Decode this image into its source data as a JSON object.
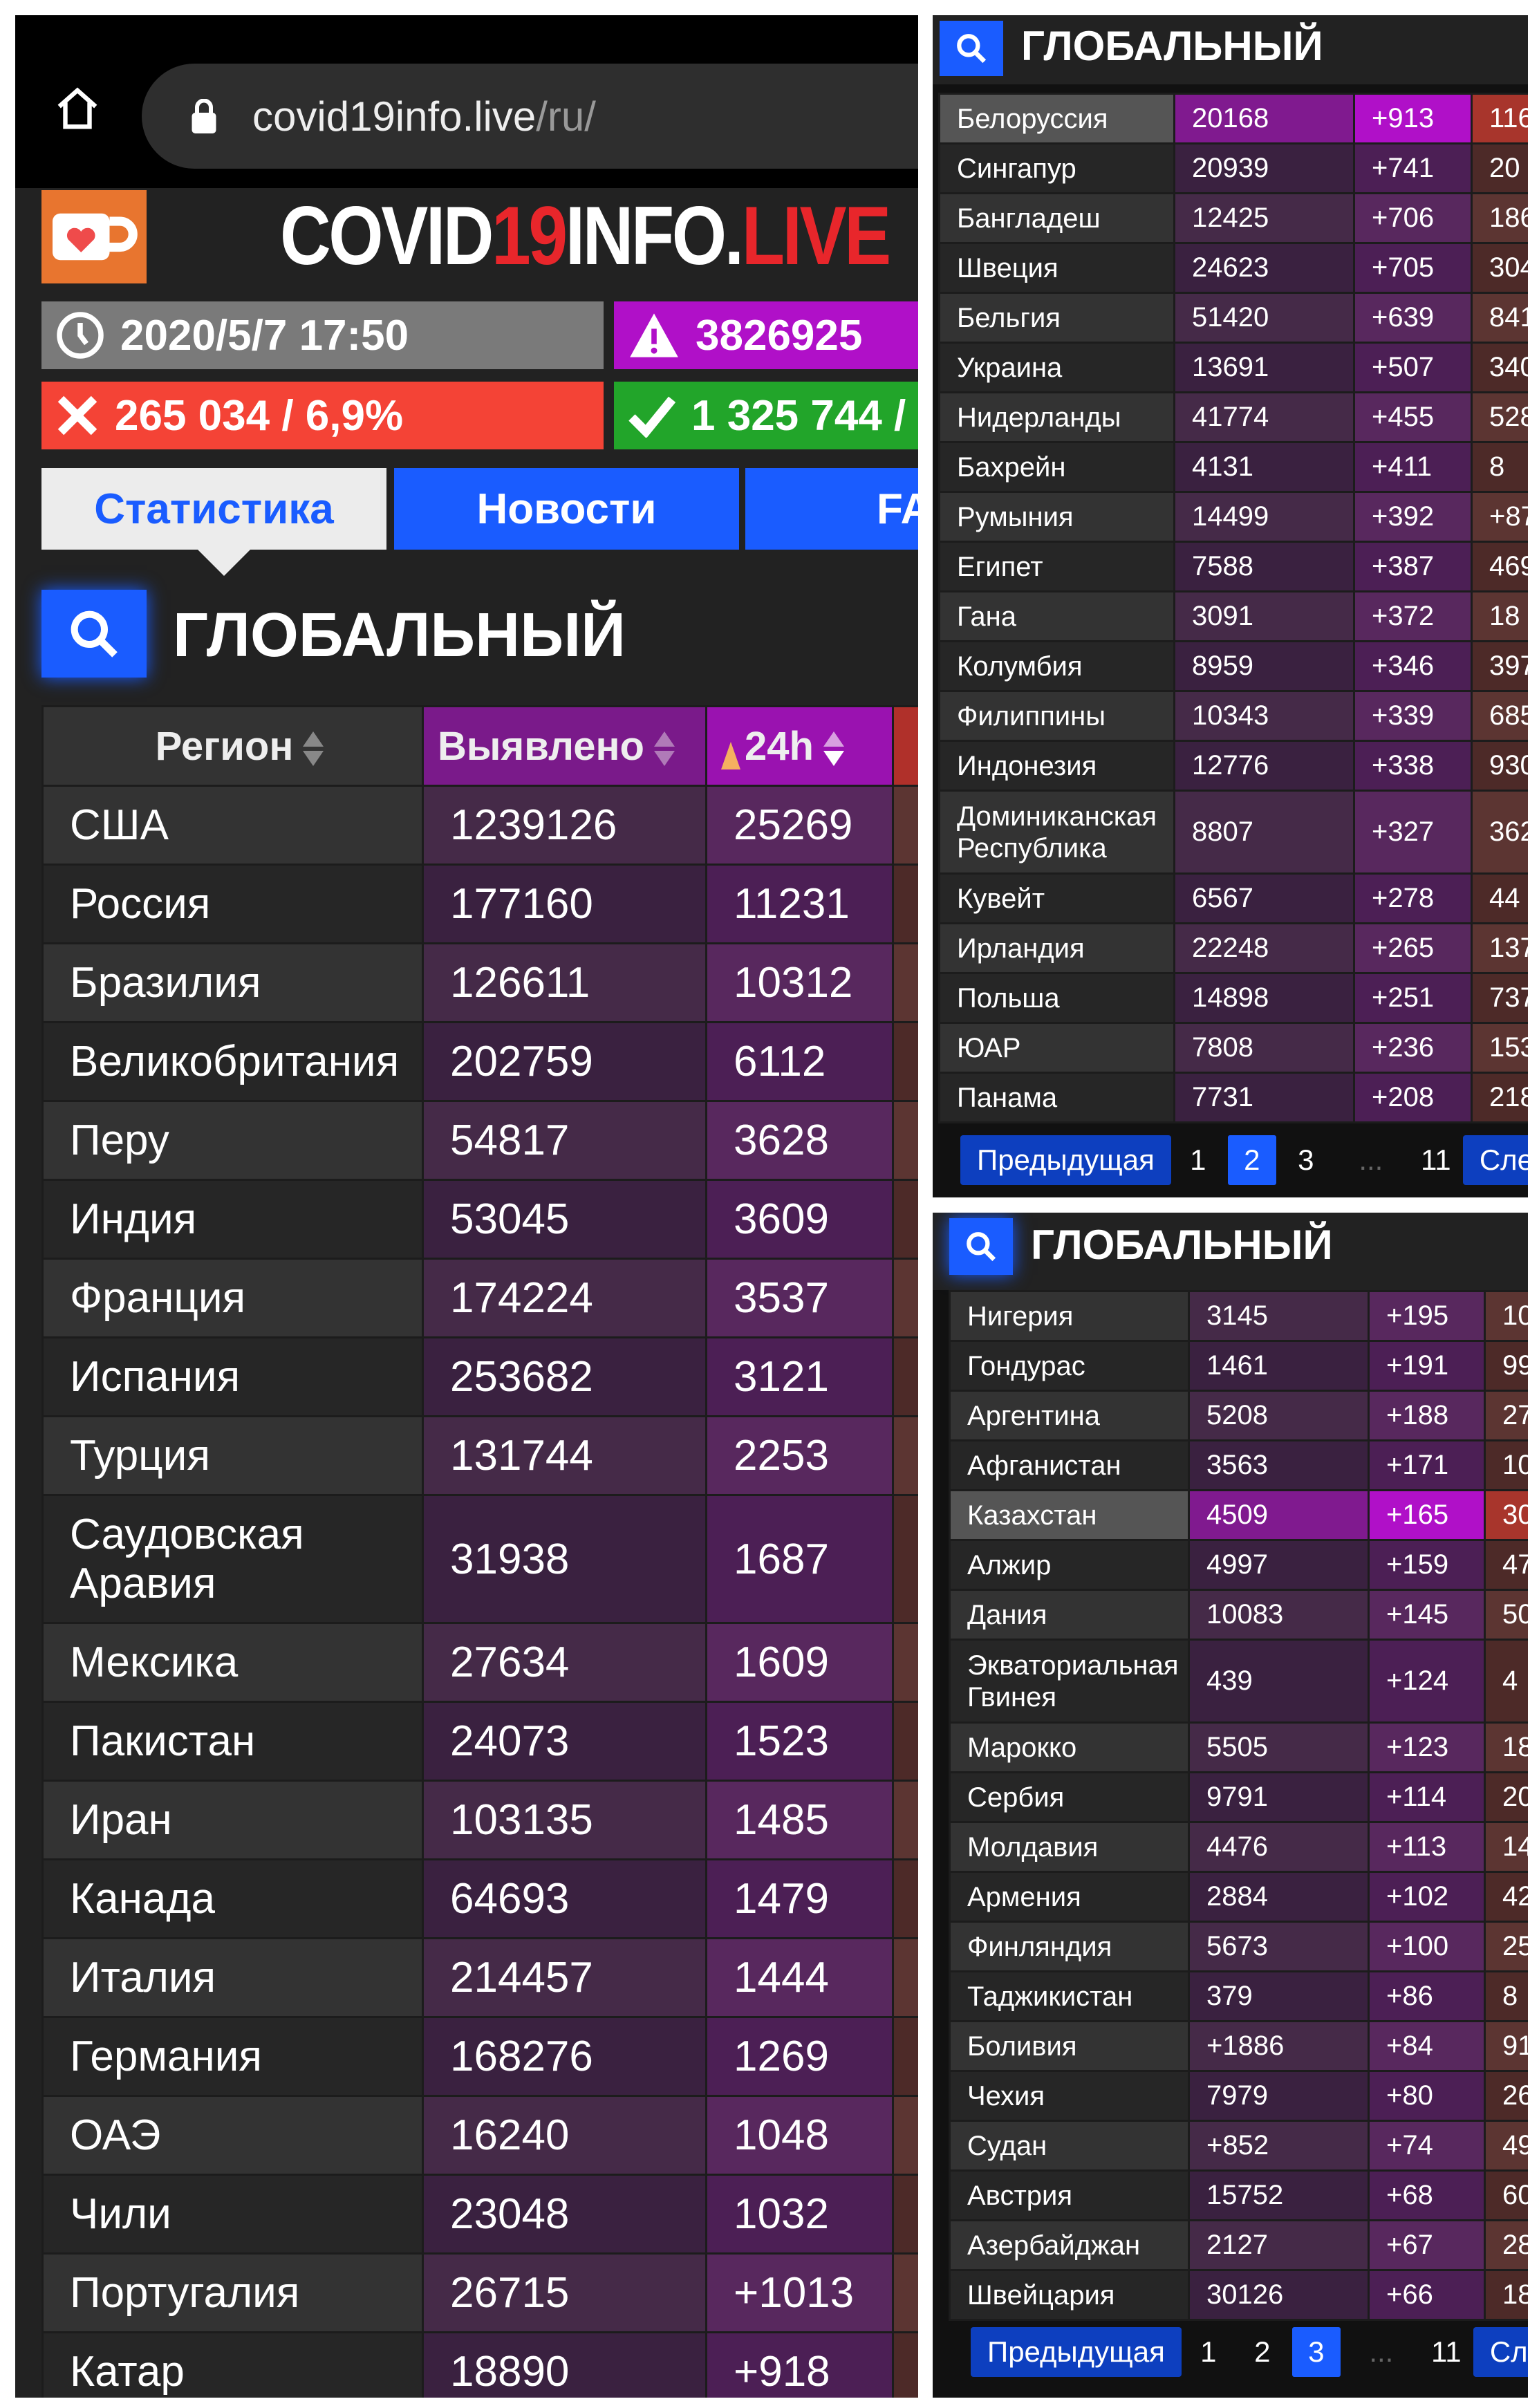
{
  "browser": {
    "host": "covid19info.live",
    "path": "/ru/"
  },
  "site": {
    "title_a": "COVID",
    "title_b": "19",
    "title_c": "INFO.",
    "title_d": "LIVE",
    "colors": {
      "accent": "#1a5cff",
      "cases": "#b010c8",
      "deaths": "#f44336",
      "recovered": "#22a52a"
    }
  },
  "stats": {
    "updated": "2020/5/7 17:50",
    "cases": "3826925",
    "deaths": "265 034  / 6,9%",
    "recovered": "1 325 744  /"
  },
  "tabs": [
    "Статистика",
    "Новости",
    "FA"
  ],
  "heading": "ГЛОБАЛЬНЫЙ",
  "table_headers": {
    "region": "Регион",
    "detected": "Выявлено",
    "day": "24h"
  },
  "left_rows": [
    [
      "США",
      "1239126",
      "25269"
    ],
    [
      "Россия",
      "177160",
      "11231"
    ],
    [
      "Бразилия",
      "126611",
      "10312"
    ],
    [
      "Великобритания",
      "202759",
      "6112"
    ],
    [
      "Перу",
      "54817",
      "3628"
    ],
    [
      "Индия",
      "53045",
      "3609"
    ],
    [
      "Франция",
      "174224",
      "3537"
    ],
    [
      "Испания",
      "253682",
      "3121"
    ],
    [
      "Турция",
      "131744",
      "2253"
    ],
    [
      "Саудовская Аравия",
      "31938",
      "1687"
    ],
    [
      "Мексика",
      "27634",
      "1609"
    ],
    [
      "Пакистан",
      "24073",
      "1523"
    ],
    [
      "Иран",
      "103135",
      "1485"
    ],
    [
      "Канада",
      "64693",
      "1479"
    ],
    [
      "Италия",
      "214457",
      "1444"
    ],
    [
      "Германия",
      "168276",
      "1269"
    ],
    [
      "ОАЭ",
      "16240",
      "1048"
    ],
    [
      "Чили",
      "23048",
      "1032"
    ],
    [
      "Португалия",
      "26715",
      "+1013"
    ],
    [
      "Катар",
      "18890",
      "+918"
    ]
  ],
  "page2": {
    "rows": [
      [
        "Белоруссия",
        "20168",
        "+913",
        "116"
      ],
      [
        "Сингапур",
        "20939",
        "+741",
        "20"
      ],
      [
        "Бангладеш",
        "12425",
        "+706",
        "186"
      ],
      [
        "Швеция",
        "24623",
        "+705",
        "304"
      ],
      [
        "Бельгия",
        "51420",
        "+639",
        "841"
      ],
      [
        "Украина",
        "13691",
        "+507",
        "340"
      ],
      [
        "Нидерланды",
        "41774",
        "+455",
        "528"
      ],
      [
        "Бахрейн",
        "4131",
        "+411",
        "8"
      ],
      [
        "Румыния",
        "14499",
        "+392",
        "+87"
      ],
      [
        "Египет",
        "7588",
        "+387",
        "469"
      ],
      [
        "Гана",
        "3091",
        "+372",
        "18"
      ],
      [
        "Колумбия",
        "8959",
        "+346",
        "397"
      ],
      [
        "Филиппины",
        "10343",
        "+339",
        "685"
      ],
      [
        "Индонезия",
        "12776",
        "+338",
        "930"
      ],
      [
        "Доминиканская Республика",
        "8807",
        "+327",
        "362"
      ],
      [
        "Кувейт",
        "6567",
        "+278",
        "44"
      ],
      [
        "Ирландия",
        "22248",
        "+265",
        "137"
      ],
      [
        "Польша",
        "14898",
        "+251",
        "737"
      ],
      [
        "ЮАР",
        "7808",
        "+236",
        "153"
      ],
      [
        "Панама",
        "7731",
        "+208",
        "218"
      ]
    ],
    "highlight": "Белоруссия",
    "pager": {
      "prev": "Предыдущая",
      "pages": [
        "1",
        "2",
        "3"
      ],
      "dots": "...",
      "last": "11",
      "next": "След",
      "current": "2"
    }
  },
  "page3": {
    "rows": [
      [
        "Нигерия",
        "3145",
        "+195",
        "10"
      ],
      [
        "Гондурас",
        "1461",
        "+191",
        "99"
      ],
      [
        "Аргентина",
        "5208",
        "+188",
        "27"
      ],
      [
        "Афганистан",
        "3563",
        "+171",
        "10"
      ],
      [
        "Казахстан",
        "4509",
        "+165",
        "30"
      ],
      [
        "Алжир",
        "4997",
        "+159",
        "47"
      ],
      [
        "Дания",
        "10083",
        "+145",
        "50"
      ],
      [
        "Экваториальная Гвинея",
        "439",
        "+124",
        "4"
      ],
      [
        "Марокко",
        "5505",
        "+123",
        "18"
      ],
      [
        "Сербия",
        "9791",
        "+114",
        "20"
      ],
      [
        "Молдавия",
        "4476",
        "+113",
        "14"
      ],
      [
        "Армения",
        "2884",
        "+102",
        "42"
      ],
      [
        "Финляндия",
        "5673",
        "+100",
        "25"
      ],
      [
        "Таджикистан",
        "379",
        "+86",
        "8"
      ],
      [
        "Боливия",
        "+1886",
        "+84",
        "91"
      ],
      [
        "Чехия",
        "7979",
        "+80",
        "26"
      ],
      [
        "Судан",
        "+852",
        "+74",
        "49"
      ],
      [
        "Австрия",
        "15752",
        "+68",
        "60"
      ],
      [
        "Азербайджан",
        "2127",
        "+67",
        "28"
      ],
      [
        "Швейцария",
        "30126",
        "+66",
        "18"
      ]
    ],
    "highlight": "Казахстан",
    "pager": {
      "prev": "Предыдущая",
      "pages": [
        "1",
        "2",
        "3"
      ],
      "dots": "...",
      "last": "11",
      "next": "Сле",
      "current": "3"
    }
  }
}
